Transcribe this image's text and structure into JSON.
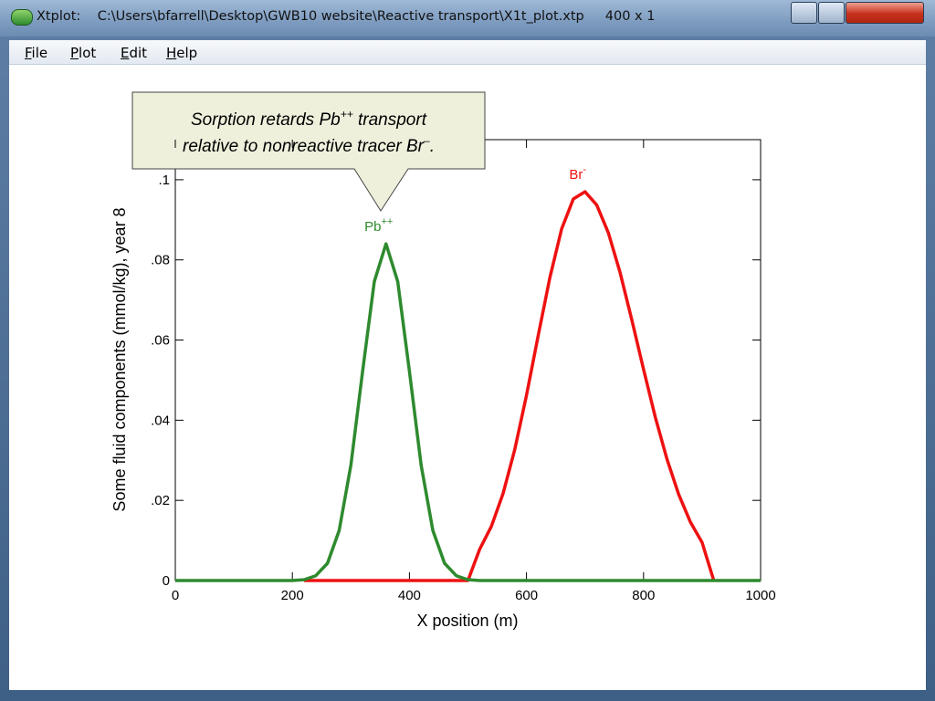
{
  "window": {
    "title": "Xtplot:    C:\\Users\\bfarrell\\Desktop\\GWB10 website\\Reactive transport\\X1t_plot.xtp     400 x 1"
  },
  "menu": [
    "File",
    "Plot",
    "Edit",
    "Help"
  ],
  "callout": {
    "lines": [
      [
        "Sorption retards Pb",
        "++",
        " transport"
      ],
      [
        "relative to nonreactive tracer Br",
        "–",
        "."
      ]
    ]
  },
  "chart_data": {
    "type": "line",
    "x_label": "X position (m)",
    "y_label": "Some fluid components (mmol/kg), year 8",
    "x": [
      0,
      20,
      40,
      60,
      80,
      100,
      120,
      140,
      160,
      180,
      200,
      220,
      240,
      260,
      280,
      300,
      320,
      340,
      360,
      380,
      400,
      420,
      440,
      460,
      480,
      500,
      520,
      540,
      560,
      580,
      600,
      620,
      640,
      660,
      680,
      700,
      720,
      740,
      760,
      780,
      800,
      820,
      840,
      860,
      880,
      900,
      920,
      940,
      960,
      980,
      1000
    ],
    "series": [
      {
        "name": "Br",
        "name_sup": "-",
        "color": "#ee1111",
        "values": [
          null,
          null,
          null,
          null,
          null,
          null,
          null,
          null,
          null,
          null,
          null,
          0,
          0,
          0,
          0,
          0,
          0,
          0,
          0,
          0,
          0,
          0,
          0,
          0,
          0,
          0,
          0.0078,
          0.0135,
          0.0217,
          0.0327,
          0.0462,
          0.0611,
          0.0756,
          0.0877,
          0.0952,
          0.097,
          0.0937,
          0.0867,
          0.0768,
          0.065,
          0.0527,
          0.0408,
          0.0303,
          0.0215,
          0.0146,
          0.0095,
          0,
          null,
          null,
          null,
          null
        ]
      },
      {
        "name": "Pb",
        "name_sup": "++",
        "color": "#2e8a2e",
        "values": [
          0,
          0,
          0,
          0,
          0,
          0,
          0,
          0,
          0,
          0,
          0,
          0.0002,
          0.0012,
          0.0043,
          0.0125,
          0.0288,
          0.0522,
          0.0746,
          0.084,
          0.0746,
          0.0522,
          0.0288,
          0.0125,
          0.0043,
          0.0012,
          0.0002,
          0,
          0,
          0,
          0,
          0,
          0,
          0,
          0,
          0,
          0,
          0,
          0,
          0,
          0,
          0,
          0,
          0,
          0,
          0,
          0,
          0,
          0,
          0,
          0,
          0
        ]
      }
    ],
    "xlim": [
      0,
      1000
    ],
    "xticks": [
      0,
      200,
      400,
      600,
      800,
      1000
    ],
    "ylim": [
      0,
      0.11
    ],
    "yticks": [
      0,
      {
        "value": 0.02,
        "label": ".02"
      },
      {
        "value": 0.04,
        "label": ".04"
      },
      {
        "value": 0.06,
        "label": ".06"
      },
      {
        "value": 0.08,
        "label": ".08"
      },
      {
        "value": 0.1,
        "label": ".1"
      }
    ]
  }
}
